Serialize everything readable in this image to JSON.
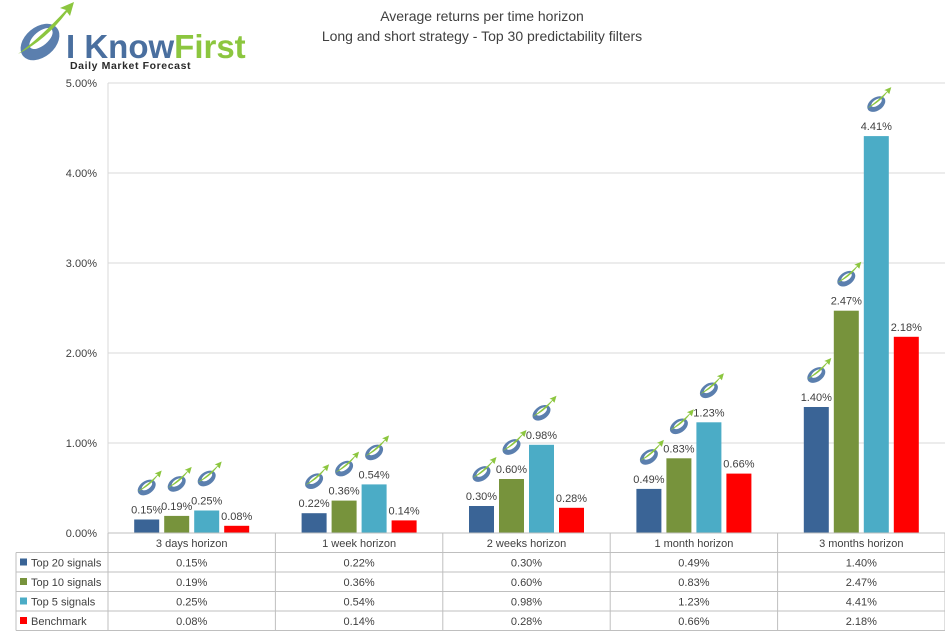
{
  "brand": {
    "name_part1": "I Know",
    "name_part2": "First",
    "tagline": "Daily Market Forecast",
    "icon": "brand-swoosh-logo-icon",
    "colors": {
      "blue": "#5b7fae",
      "green": "#8cc63f"
    }
  },
  "chart_data": {
    "type": "bar",
    "title": "Average returns per time horizon",
    "subtitle": "Long and short strategy - Top 30  predictability filters",
    "categories": [
      "3 days horizon",
      "1 week horizon",
      "2 weeks horizon",
      "1 month horizon",
      "3 months horizon"
    ],
    "ylim": [
      0,
      5
    ],
    "yticks": [
      "0.00%",
      "1.00%",
      "2.00%",
      "3.00%",
      "4.00%",
      "5.00%"
    ],
    "grid": true,
    "legend": "table-below",
    "series": [
      {
        "name": "Top 20 signals",
        "color": "#3a6496",
        "values": [
          0.15,
          0.22,
          0.3,
          0.49,
          1.4
        ],
        "labels": [
          "0.15%",
          "0.22%",
          "0.30%",
          "0.49%",
          "1.40%"
        ],
        "logo": true
      },
      {
        "name": "Top 10 signals",
        "color": "#77933c",
        "values": [
          0.19,
          0.36,
          0.6,
          0.83,
          2.47
        ],
        "labels": [
          "0.19%",
          "0.36%",
          "0.60%",
          "0.83%",
          "2.47%"
        ],
        "logo": true
      },
      {
        "name": "Top 5 signals",
        "color": "#4bacc6",
        "values": [
          0.25,
          0.54,
          0.98,
          1.23,
          4.41
        ],
        "labels": [
          "0.25%",
          "0.54%",
          "0.98%",
          "1.23%",
          "4.41%"
        ],
        "logo": true
      },
      {
        "name": "Benchmark",
        "color": "#ff0000",
        "values": [
          0.08,
          0.14,
          0.28,
          0.66,
          2.18
        ],
        "labels": [
          "0.08%",
          "0.14%",
          "0.28%",
          "0.66%",
          "2.18%"
        ],
        "logo": false
      }
    ]
  }
}
